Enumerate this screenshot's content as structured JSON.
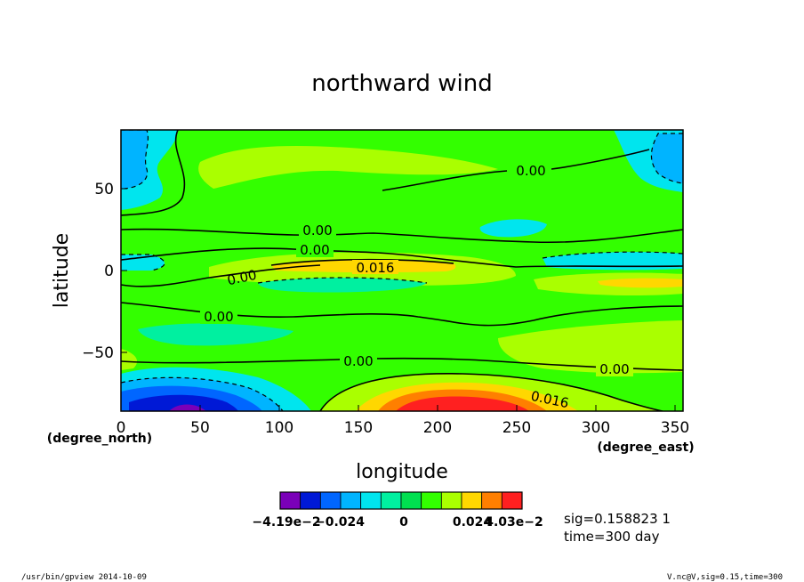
{
  "chart_data": {
    "type": "heatmap",
    "title": "northward wind",
    "xlabel": "longitude",
    "ylabel": "latitude",
    "x_units": "(degree_east)",
    "y_units": "(degree_north)",
    "xlim": [
      0,
      355
    ],
    "ylim": [
      -87,
      87
    ],
    "x_ticks": [
      "0",
      "50",
      "100",
      "150",
      "200",
      "250",
      "300",
      "350"
    ],
    "y_ticks": [
      "50",
      "0",
      "−50"
    ],
    "contour_labels": [
      "0.00",
      "0.00",
      "0.00",
      "0.016",
      "0.00",
      "0.00",
      "0.00",
      "0.00",
      "0.016"
    ],
    "colorbar": {
      "colors": [
        "#7a00b8",
        "#0019d6",
        "#0066ff",
        "#00b4ff",
        "#00e5ee",
        "#00f0a0",
        "#00e050",
        "#33ff00",
        "#aaff00",
        "#ffd700",
        "#ff7f00",
        "#ff2020"
      ],
      "labels": [
        "−4.19e−2",
        "−0.024",
        "0",
        "0.024",
        "4.03e−2"
      ]
    },
    "info": {
      "sig": "sig=0.158823 1",
      "time": "time=300 day"
    }
  },
  "footer": {
    "left": "/usr/bin/gpview   2014-10-09",
    "right": "V.nc@V,sig=0.15,time=300"
  }
}
